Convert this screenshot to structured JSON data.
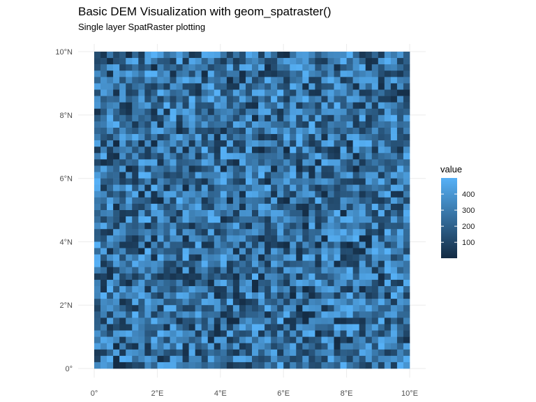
{
  "chart_data": {
    "type": "heatmap",
    "title": "Basic DEM Visualization with geom_spatraster()",
    "subtitle": "Single layer SpatRaster plotting",
    "xlabel": "",
    "ylabel": "",
    "x_ticks": [
      {
        "value": 0,
        "label": "0°"
      },
      {
        "value": 2,
        "label": "2°E"
      },
      {
        "value": 4,
        "label": "4°E"
      },
      {
        "value": 6,
        "label": "6°E"
      },
      {
        "value": 8,
        "label": "8°E"
      },
      {
        "value": 10,
        "label": "10°E"
      }
    ],
    "y_ticks": [
      {
        "value": 0,
        "label": "0°"
      },
      {
        "value": 2,
        "label": "2°N"
      },
      {
        "value": 4,
        "label": "4°N"
      },
      {
        "value": 6,
        "label": "6°N"
      },
      {
        "value": 8,
        "label": "8°N"
      },
      {
        "value": 10,
        "label": "10°N"
      }
    ],
    "xlim": [
      0,
      10
    ],
    "ylim": [
      0,
      10
    ],
    "raster": {
      "ncol": 50,
      "nrow": 50,
      "value_range": [
        1,
        500
      ],
      "seed": 42
    },
    "color_scale": {
      "low": "#132B43",
      "high": "#56B1F7"
    },
    "legend": {
      "title": "value",
      "position": "right",
      "breaks": [
        {
          "value": 100,
          "label": "100"
        },
        {
          "value": 200,
          "label": "200"
        },
        {
          "value": 300,
          "label": "300"
        },
        {
          "value": 400,
          "label": "400"
        }
      ]
    },
    "grid": true
  }
}
